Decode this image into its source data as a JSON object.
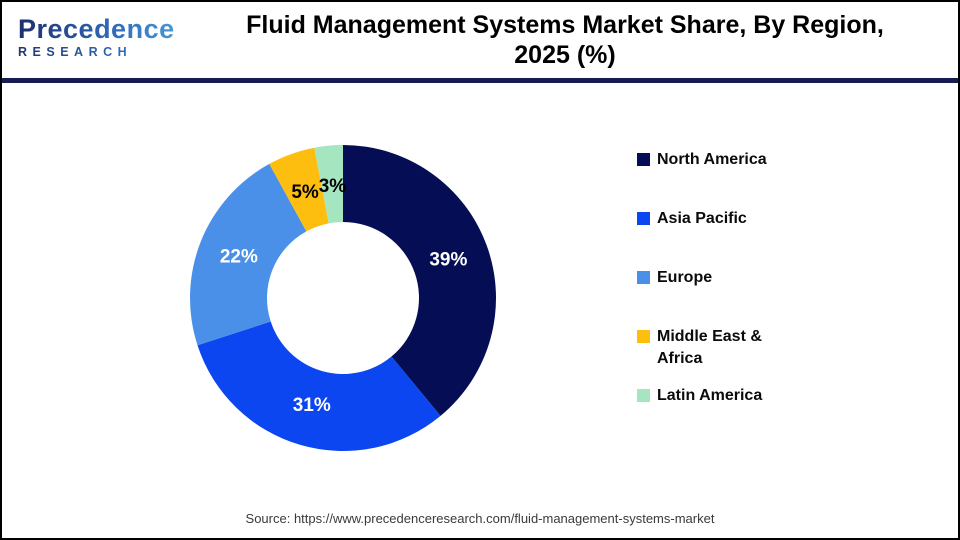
{
  "header": {
    "logo": {
      "brand": "Precedence",
      "sub": "RESEARCH"
    },
    "title_line1": "Fluid Management Systems Market Share, By Region,",
    "title_line2": "2025 (%)"
  },
  "chart_data": {
    "type": "pie",
    "subtype": "donut",
    "title": "Fluid Management Systems Market Share, By Region, 2025 (%)",
    "unit": "%",
    "categories": [
      "North America",
      "Asia Pacific",
      "Europe",
      "Middle East & Africa",
      "Latin America"
    ],
    "values": [
      39,
      31,
      22,
      5,
      3
    ],
    "slice_labels": [
      "39%",
      "31%",
      "22%",
      "5%",
      "3%"
    ],
    "colors": [
      "#050E55",
      "#0B46F0",
      "#4A90E8",
      "#FDBE10",
      "#A5E6C1"
    ],
    "slice_label_colors": [
      "#FFFFFF",
      "#FFFFFF",
      "#FFFFFF",
      "#000000",
      "#000000"
    ],
    "start_angle_deg": 0,
    "direction": "clockwise",
    "hole_ratio": 0.5,
    "legend_position": "right"
  },
  "footer": {
    "source": "Source: https://www.precedenceresearch.com/fluid-management-systems-market"
  },
  "theme": {
    "divider_color": "#161C51",
    "border_color": "#000000",
    "background": "#FFFFFF"
  }
}
